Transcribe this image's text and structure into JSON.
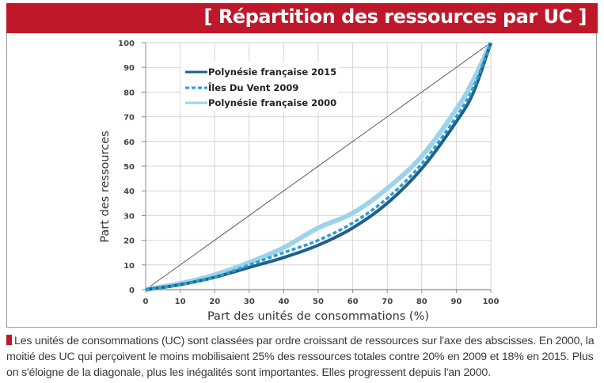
{
  "header": {
    "title": "[ Répartition des ressources par UC ]",
    "banner_color": "#c0182b"
  },
  "chart_data": {
    "type": "line",
    "title": "[ Répartition des ressources par UC ]",
    "xlabel": "Part des unités de consommations (%)",
    "ylabel": "Part des ressources",
    "xlim": [
      0,
      100
    ],
    "ylim": [
      0,
      100
    ],
    "x_ticks": [
      "0",
      "10",
      "20",
      "30",
      "40",
      "50",
      "60",
      "70",
      "80",
      "90",
      "100"
    ],
    "y_ticks": [
      "0",
      "10",
      "20",
      "30",
      "40",
      "50",
      "60",
      "70",
      "80",
      "90",
      "100"
    ],
    "grid": true,
    "legend_position": "upper-left",
    "x": [
      0,
      10,
      20,
      30,
      40,
      50,
      60,
      70,
      80,
      90,
      95,
      100
    ],
    "series": [
      {
        "name": "Polynésie française 2015",
        "color": "#1f5f8b",
        "style": "solid",
        "values": [
          0,
          2,
          5,
          9,
          13,
          18,
          25,
          35,
          49,
          68,
          80,
          100
        ]
      },
      {
        "name": "Îles Du Vent 2009",
        "color": "#2a9fd0",
        "style": "dashed",
        "values": [
          0,
          2,
          5,
          10,
          15,
          20,
          27,
          37,
          51,
          70,
          82,
          100
        ]
      },
      {
        "name": "Polynésie française 2000",
        "color": "#9dd3ea",
        "style": "solid",
        "values": [
          0,
          2.5,
          6,
          11,
          17,
          25,
          31,
          41,
          54,
          73,
          85,
          100
        ]
      },
      {
        "name": "Diagonale",
        "color": "#555555",
        "style": "thin",
        "values": [
          0,
          10,
          20,
          30,
          40,
          50,
          60,
          70,
          80,
          90,
          95,
          100
        ]
      }
    ]
  },
  "legend": {
    "items": [
      {
        "label": "Polynésie française 2015"
      },
      {
        "label": "Îles Du Vent 2009"
      },
      {
        "label": "Polynésie française 2000"
      }
    ]
  },
  "caption": {
    "text": "Les unités de consommations (UC) sont classées par ordre croissant de ressources sur l'axe des abscisses. En 2000, la moitié des UC qui perçoivent le moins mobilisaient 25% des ressources totales contre 20% en 2009 et 18% en 2015. Plus on s'éloigne de la diagonale, plus les inégalités sont importantes. Elles progressent depuis l'an 2000."
  }
}
